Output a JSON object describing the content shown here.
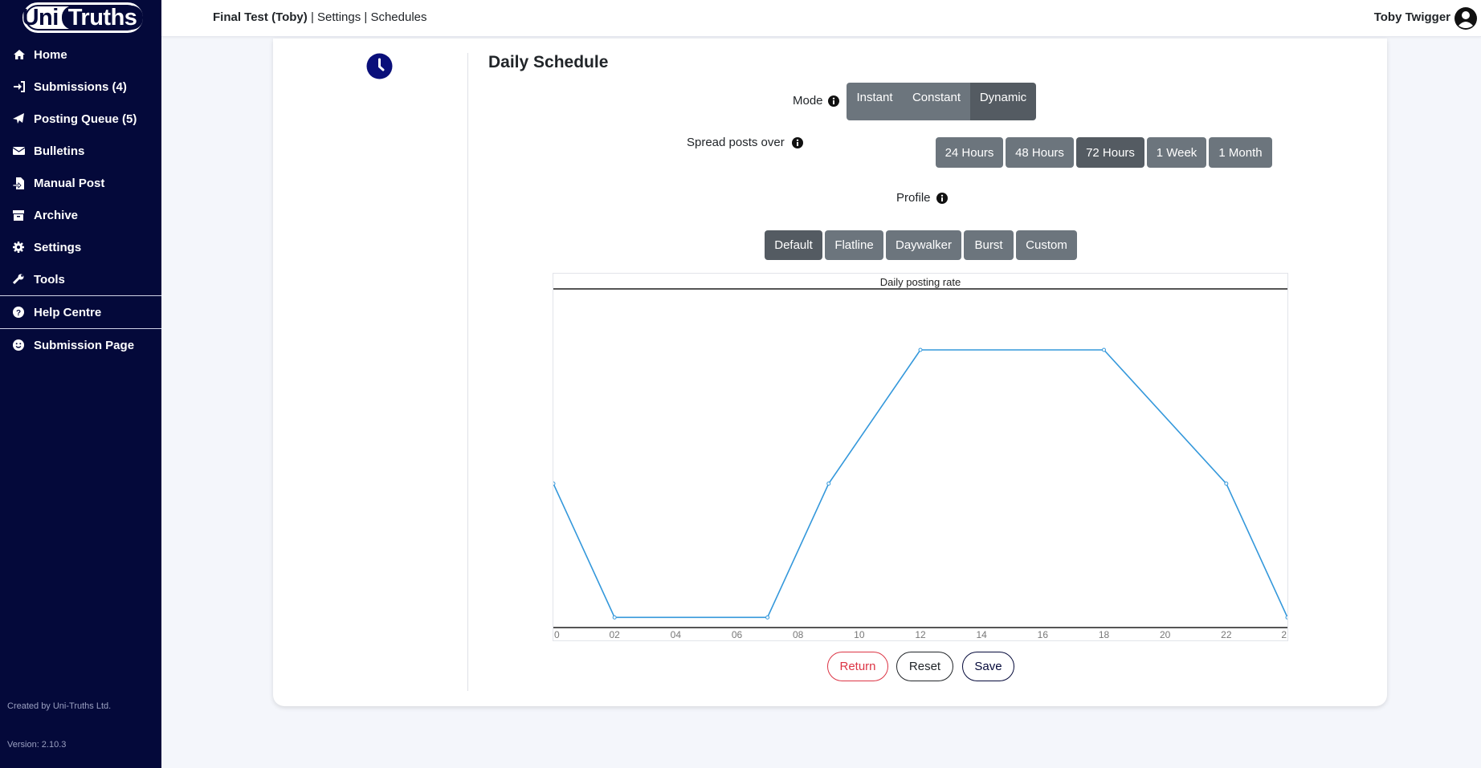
{
  "app": {
    "logo_uni": "Uni",
    "logo_truths": "Truths"
  },
  "sidebar": {
    "items": [
      {
        "label": "Home",
        "icon": "home-icon"
      },
      {
        "label": "Submissions (4)",
        "icon": "sign-in-icon"
      },
      {
        "label": "Posting Queue (5)",
        "icon": "paper-plane-icon"
      },
      {
        "label": "Bulletins",
        "icon": "envelope-icon"
      },
      {
        "label": "Manual Post",
        "icon": "file-import-icon"
      },
      {
        "label": "Archive",
        "icon": "archive-icon"
      },
      {
        "label": "Settings",
        "icon": "gear-icon"
      },
      {
        "label": "Tools",
        "icon": "wrench-icon"
      }
    ],
    "help": {
      "label": "Help Centre",
      "icon": "question-circle-icon"
    },
    "submission_page": {
      "label": "Submission Page",
      "icon": "smile-icon"
    },
    "created_by": "Created by Uni-Truths Ltd.",
    "version": "Version: 2.10.3"
  },
  "header": {
    "breadcrumb_strong": "Final Test (Toby)",
    "breadcrumb_rest": " | Settings | Schedules",
    "user_name": "Toby Twigger"
  },
  "schedule": {
    "title": "Daily Schedule",
    "mode_label": "Mode",
    "modes": [
      "Instant",
      "Constant",
      "Dynamic"
    ],
    "mode_selected": "Dynamic",
    "spread_label": "Spread posts over",
    "spreads": [
      "24 Hours",
      "48 Hours",
      "72 Hours",
      "1 Week",
      "1 Month"
    ],
    "spread_selected": "72 Hours",
    "profile_label": "Profile",
    "profiles": [
      "Default",
      "Flatline",
      "Daywalker",
      "Burst",
      "Custom"
    ],
    "profile_selected": "Default",
    "return_label": "Return",
    "reset_label": "Reset",
    "save_label": "Save"
  },
  "colors": {
    "sidebar_bg": "#04093a",
    "line": "#3498db",
    "return": "#dc3545",
    "save": "#04093a"
  },
  "chart_data": {
    "type": "line",
    "title": "Daily posting rate",
    "x": [
      0,
      2,
      7,
      9,
      12,
      18,
      22,
      24
    ],
    "values": [
      2,
      1,
      1,
      2,
      3,
      3,
      2,
      1
    ],
    "ylim": [
      0.93,
      3.45
    ],
    "xlim": [
      0,
      24
    ],
    "xticks": [
      "0",
      "02",
      "04",
      "06",
      "08",
      "10",
      "12",
      "14",
      "16",
      "18",
      "20",
      "22",
      "2"
    ],
    "grid": false
  }
}
